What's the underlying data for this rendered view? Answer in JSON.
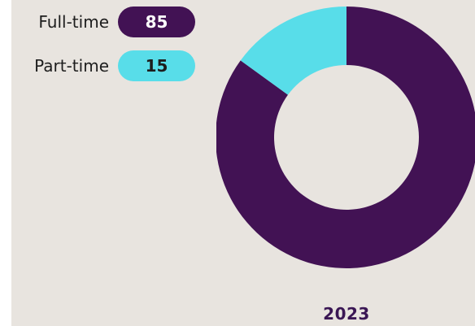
{
  "colors": {
    "background": "#e8e4df",
    "fulltime": "#421254",
    "parttime": "#58dde9",
    "label_text": "#1d1d1d",
    "year_text": "#3a1654",
    "fulltime_value_text": "#ffffff",
    "parttime_value_text": "#1d1d1d"
  },
  "legend": [
    {
      "label": "Full-time",
      "value": "85"
    },
    {
      "label": "Part-time",
      "value": "15"
    }
  ],
  "chart_data": {
    "type": "pie",
    "categories": [
      "Full-time",
      "Part-time"
    ],
    "values": [
      85,
      15
    ],
    "title": "",
    "xlabel": "",
    "ylabel": "",
    "legend_position": "left",
    "year": "2023"
  }
}
